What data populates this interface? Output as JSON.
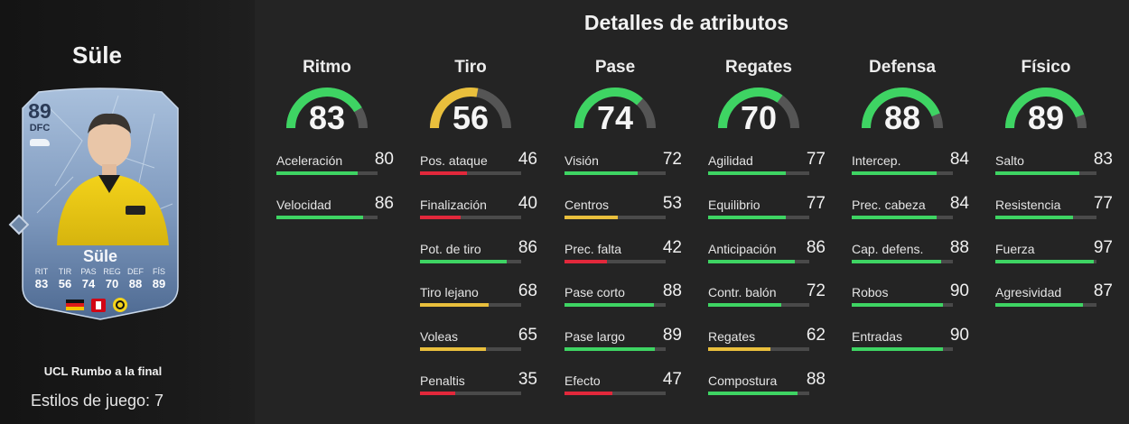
{
  "colors": {
    "high": "#3ed463",
    "mid": "#e9bf3c",
    "low": "#e2283b",
    "track": "#4a4a4a",
    "gauge_track": "#555555"
  },
  "player": {
    "name": "Süle",
    "card_rating": "89",
    "card_position": "DFC",
    "card_name": "Süle",
    "card_stats": [
      {
        "label": "RIT",
        "value": "83"
      },
      {
        "label": "TIR",
        "value": "56"
      },
      {
        "label": "PAS",
        "value": "74"
      },
      {
        "label": "REG",
        "value": "70"
      },
      {
        "label": "DEF",
        "value": "88"
      },
      {
        "label": "FÍS",
        "value": "89"
      }
    ],
    "promo": "UCL Rumbo a la final",
    "play_styles": "Estilos de juego: 7"
  },
  "details_title": "Detalles de atributos",
  "categories": [
    {
      "title": "Ritmo",
      "value": 83,
      "attributes": [
        {
          "label": "Aceleración",
          "value": 80
        },
        {
          "label": "Velocidad",
          "value": 86
        }
      ]
    },
    {
      "title": "Tiro",
      "value": 56,
      "attributes": [
        {
          "label": "Pos. ataque",
          "value": 46
        },
        {
          "label": "Finalización",
          "value": 40
        },
        {
          "label": "Pot. de tiro",
          "value": 86
        },
        {
          "label": "Tiro lejano",
          "value": 68
        },
        {
          "label": "Voleas",
          "value": 65
        },
        {
          "label": "Penaltis",
          "value": 35
        }
      ]
    },
    {
      "title": "Pase",
      "value": 74,
      "attributes": [
        {
          "label": "Visión",
          "value": 72
        },
        {
          "label": "Centros",
          "value": 53
        },
        {
          "label": "Prec. falta",
          "value": 42
        },
        {
          "label": "Pase corto",
          "value": 88
        },
        {
          "label": "Pase largo",
          "value": 89
        },
        {
          "label": "Efecto",
          "value": 47
        }
      ]
    },
    {
      "title": "Regates",
      "value": 70,
      "attributes": [
        {
          "label": "Agilidad",
          "value": 77
        },
        {
          "label": "Equilibrio",
          "value": 77
        },
        {
          "label": "Anticipación",
          "value": 86
        },
        {
          "label": "Contr. balón",
          "value": 72
        },
        {
          "label": "Regates",
          "value": 62
        },
        {
          "label": "Compostura",
          "value": 88
        }
      ]
    },
    {
      "title": "Defensa",
      "value": 88,
      "attributes": [
        {
          "label": "Intercep.",
          "value": 84
        },
        {
          "label": "Prec. cabeza",
          "value": 84
        },
        {
          "label": "Cap. defens.",
          "value": 88
        },
        {
          "label": "Robos",
          "value": 90
        },
        {
          "label": "Entradas",
          "value": 90
        }
      ]
    },
    {
      "title": "Físico",
      "value": 89,
      "attributes": [
        {
          "label": "Salto",
          "value": 83
        },
        {
          "label": "Resistencia",
          "value": 77
        },
        {
          "label": "Fuerza",
          "value": 97
        },
        {
          "label": "Agresividad",
          "value": 87
        }
      ]
    }
  ]
}
